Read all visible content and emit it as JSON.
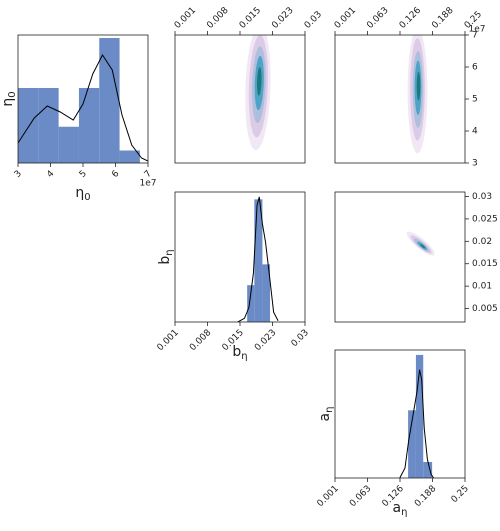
{
  "chart_data": [
    {
      "type": "histogram",
      "xlabel": {
        "base": "η",
        "sub": "0"
      },
      "ylabel": {
        "base": "η",
        "sub": "0"
      },
      "xlim": [
        3,
        7
      ],
      "xticks": [
        3,
        4,
        5,
        6,
        7
      ],
      "xticks_side": "bottom",
      "x_offset_label": "1e7",
      "ylim": [
        0,
        5.12
      ],
      "color": "#6a8bc5",
      "bins": [
        3,
        3.625,
        4.25,
        4.875,
        5.5,
        6.125,
        6.75
      ],
      "counts": [
        3.0,
        3.0,
        1.45,
        3.0,
        5.0,
        0.5
      ],
      "kde": {
        "x": [
          3.0,
          3.5,
          3.9,
          4.3,
          4.7,
          5.0,
          5.3,
          5.6,
          5.9,
          6.2,
          6.5,
          6.8,
          7.0
        ],
        "y": [
          0.8,
          1.8,
          2.28,
          2.04,
          1.72,
          2.36,
          3.56,
          4.32,
          3.72,
          1.92,
          0.72,
          0.2,
          0.08
        ]
      }
    },
    {
      "type": "contour",
      "xlim": [
        0.001,
        0.03
      ],
      "xticks": [
        0.001,
        {
          "value": 0.00825,
          "label": "0.008"
        },
        {
          "value": 0.0155,
          "label": "0.015"
        },
        {
          "value": 0.02275,
          "label": "0.023"
        },
        0.03
      ],
      "xticks_side": "top",
      "ylim": [
        3,
        7
      ],
      "levels": [
        {
          "color": "#f2e7f4",
          "cx": 0.0195,
          "cy": 5.35,
          "rx": 0.0028,
          "ry": 1.95,
          "angle": 2
        },
        {
          "color": "#dccbe6",
          "cx": 0.0196,
          "cy": 5.4,
          "rx": 0.0021,
          "ry": 1.6,
          "angle": 2
        },
        {
          "color": "#aebfdd",
          "cx": 0.0197,
          "cy": 5.45,
          "rx": 0.0015,
          "ry": 1.2,
          "angle": 2
        },
        {
          "color": "#4fa3c7",
          "cx": 0.0198,
          "cy": 5.5,
          "rx": 0.001,
          "ry": 0.85,
          "angle": 2
        },
        {
          "color": "#1c7a7e",
          "cx": 0.0198,
          "cy": 5.55,
          "rx": 0.0005,
          "ry": 0.45,
          "angle": 2
        }
      ]
    },
    {
      "type": "contour",
      "xlim": [
        0.001,
        0.25
      ],
      "xticks": [
        0.001,
        {
          "value": 0.06325,
          "label": "0.063"
        },
        {
          "value": 0.1255,
          "label": "0.126"
        },
        {
          "value": 0.18775,
          "label": "0.188"
        },
        0.25
      ],
      "xticks_side": "top",
      "ylim": [
        3,
        7
      ],
      "yticks": [
        3,
        4,
        5,
        6,
        7
      ],
      "yticks_side": "right",
      "y_offset_label": "1e7",
      "levels": [
        {
          "color": "#f2e7f4",
          "cx": 0.159,
          "cy": 5.25,
          "rx": 0.019,
          "ry": 1.95,
          "angle": 0
        },
        {
          "color": "#dccbe6",
          "cx": 0.159,
          "cy": 5.3,
          "rx": 0.014,
          "ry": 1.6,
          "angle": 0
        },
        {
          "color": "#aebfdd",
          "cx": 0.16,
          "cy": 5.3,
          "rx": 0.01,
          "ry": 1.2,
          "angle": 0
        },
        {
          "color": "#4fa3c7",
          "cx": 0.16,
          "cy": 5.35,
          "rx": 0.0065,
          "ry": 0.85,
          "angle": 0
        },
        {
          "color": "#1c7a7e",
          "cx": 0.161,
          "cy": 5.4,
          "rx": 0.0035,
          "ry": 0.45,
          "angle": 0
        }
      ]
    },
    {
      "type": "histogram",
      "xlabel": {
        "base": "b",
        "sub": "η"
      },
      "ylabel": {
        "base": "b",
        "sub": "η"
      },
      "xlim": [
        0.001,
        0.03
      ],
      "xticks": [
        0.001,
        {
          "value": 0.00825,
          "label": "0.008"
        },
        {
          "value": 0.0155,
          "label": "0.015"
        },
        {
          "value": 0.02275,
          "label": "0.023"
        },
        0.03
      ],
      "xticks_side": "bottom",
      "ylim": [
        0,
        10.6
      ],
      "color": "#6a8bc5",
      "bins": [
        0.0171,
        0.0187,
        0.0205,
        0.0222
      ],
      "counts": [
        3,
        10,
        4.7
      ],
      "kde": {
        "x": [
          0.015,
          0.0165,
          0.0175,
          0.0185,
          0.0193,
          0.0198,
          0.0205,
          0.0212,
          0.022,
          0.023,
          0.024
        ],
        "y": [
          0,
          0.3,
          1.2,
          4,
          9.5,
          10.2,
          8,
          6.5,
          4,
          0.8,
          0.1
        ]
      }
    },
    {
      "type": "contour",
      "xlim": [
        0.001,
        0.25
      ],
      "ylim": [
        0.002,
        0.031
      ],
      "yticks": [
        0.005,
        0.01,
        0.015,
        0.02,
        0.025,
        0.03
      ],
      "yticks_side": "right",
      "levels": [
        {
          "color": "#f2e7f4",
          "cx": 0.165,
          "cy": 0.0195,
          "rx": 0.034,
          "ry": 0.0011,
          "angle": 40
        },
        {
          "color": "#dccbe6",
          "cx": 0.166,
          "cy": 0.0193,
          "rx": 0.026,
          "ry": 0.0008,
          "angle": 40
        },
        {
          "color": "#aebfdd",
          "cx": 0.167,
          "cy": 0.0191,
          "rx": 0.019,
          "ry": 0.0006,
          "angle": 40
        },
        {
          "color": "#4fa3c7",
          "cx": 0.168,
          "cy": 0.019,
          "rx": 0.012,
          "ry": 0.0004,
          "angle": 40
        },
        {
          "color": "#1c7a7e",
          "cx": 0.169,
          "cy": 0.0189,
          "rx": 0.006,
          "ry": 0.0002,
          "angle": 40
        }
      ]
    },
    {
      "type": "histogram",
      "xlabel": {
        "base": "a",
        "sub": "η"
      },
      "ylabel": {
        "base": "a",
        "sub": "η"
      },
      "xlim": [
        0.001,
        0.25
      ],
      "xticks": [
        0.001,
        {
          "value": 0.06325,
          "label": "0.063"
        },
        {
          "value": 0.1255,
          "label": "0.126"
        },
        {
          "value": 0.18775,
          "label": "0.188"
        },
        0.25
      ],
      "xticks_side": "bottom",
      "ylim": [
        0,
        10.4
      ],
      "color": "#6a8bc5",
      "bins": [
        0.141,
        0.156,
        0.17,
        0.187
      ],
      "counts": [
        5.5,
        10,
        1.3
      ],
      "kde": {
        "x": [
          0.125,
          0.135,
          0.142,
          0.15,
          0.158,
          0.163,
          0.167,
          0.172,
          0.178,
          0.185,
          0.19
        ],
        "y": [
          0,
          0.8,
          3,
          5,
          7,
          8.8,
          8,
          4,
          1.5,
          0.3,
          0
        ]
      }
    }
  ]
}
